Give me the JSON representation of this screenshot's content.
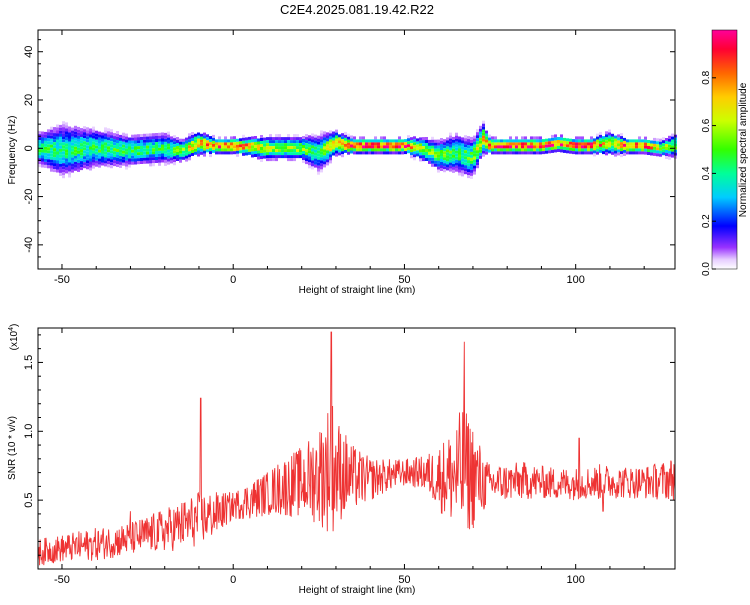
{
  "title": "C2E4.2025.081.19.42.R22",
  "colors": {
    "snr_line": "#ee3333"
  },
  "chart_data": [
    {
      "type": "heatmap",
      "title": "C2E4.2025.081.19.42.R22",
      "xlabel": "Height of straight line (km)",
      "ylabel": "Frequency (Hz)",
      "xlim": [
        -57,
        129
      ],
      "ylim": [
        -50,
        49
      ],
      "xticks": [
        -50,
        0,
        50,
        100
      ],
      "yticks": [
        -40,
        -20,
        0,
        20,
        40
      ],
      "xtick_labels": [
        "-50",
        "0",
        "50",
        "100"
      ],
      "ytick_labels": [
        "-40",
        "-20",
        "0",
        "20",
        "40"
      ],
      "colorbar": {
        "label": "Normalized spectral amplitude",
        "range": [
          0,
          1
        ],
        "ticks": [
          0.0,
          0.2,
          0.4,
          0.6,
          0.8
        ],
        "tick_labels": [
          "0.0",
          "0.2",
          "0.4",
          "0.6",
          "0.8"
        ]
      },
      "ridge": {
        "x": [
          -57,
          -50,
          -40,
          -30,
          -20,
          -15,
          -10,
          -5,
          0,
          10,
          20,
          25,
          30,
          35,
          40,
          50,
          55,
          60,
          65,
          70,
          73,
          75,
          80,
          85,
          90,
          95,
          100,
          105,
          110,
          115,
          120,
          125,
          129
        ],
        "y": [
          0,
          -1,
          0,
          -1,
          0,
          -1,
          2,
          1,
          1,
          0,
          0,
          -2,
          2,
          1,
          1,
          1,
          0,
          -3,
          -2,
          -4,
          4,
          1,
          1,
          1,
          1,
          2,
          1,
          1,
          2,
          1,
          1,
          0,
          1
        ],
        "halfwidth": [
          4,
          7,
          5,
          4,
          4,
          3,
          3,
          2,
          2,
          3,
          3,
          5,
          3,
          2,
          2,
          2,
          3,
          4,
          5,
          5,
          4,
          2,
          2,
          2,
          2,
          2,
          2,
          2,
          3,
          2,
          2,
          2,
          3
        ],
        "peak": [
          0.45,
          0.4,
          0.45,
          0.45,
          0.45,
          0.5,
          0.8,
          0.8,
          0.9,
          0.6,
          0.55,
          0.4,
          0.8,
          0.9,
          0.9,
          0.9,
          0.55,
          0.5,
          0.45,
          0.5,
          0.7,
          0.9,
          0.85,
          0.9,
          0.9,
          0.85,
          0.9,
          0.9,
          0.6,
          0.85,
          0.85,
          0.6,
          0.55
        ]
      }
    },
    {
      "type": "line",
      "xlabel": "Height of straight line (km)",
      "ylabel": "SNR (10 * v/v)",
      "y_multiplier": "(x10",
      "y_multiplier_exp": "4",
      "y_multiplier_close": ")",
      "xlim": [
        -57,
        129
      ],
      "ylim": [
        0.0,
        1.75
      ],
      "xticks": [
        -50,
        0,
        50,
        100
      ],
      "yticks": [
        0.5,
        1.0,
        1.5
      ],
      "xtick_labels": [
        "-50",
        "0",
        "50",
        "100"
      ],
      "ytick_labels": [
        "0.5",
        "1.0",
        "1.5"
      ],
      "series": [
        {
          "x": [
            -57,
            -50,
            -40,
            -30,
            -20,
            -15,
            -10,
            -5,
            0,
            5,
            10,
            15,
            20,
            25,
            27,
            29,
            30,
            35,
            40,
            45,
            50,
            55,
            58,
            62,
            65,
            67,
            68,
            70,
            73,
            75,
            80,
            85,
            90,
            95,
            100,
            105,
            108,
            110,
            115,
            120,
            125,
            129
          ],
          "y": [
            0.12,
            0.15,
            0.18,
            0.22,
            0.28,
            0.32,
            0.36,
            0.4,
            0.46,
            0.5,
            0.55,
            0.6,
            0.63,
            0.68,
            0.72,
            0.75,
            0.72,
            0.66,
            0.65,
            0.68,
            0.7,
            0.7,
            0.68,
            0.66,
            0.68,
            0.7,
            0.7,
            0.68,
            0.62,
            0.62,
            0.63,
            0.64,
            0.63,
            0.62,
            0.62,
            0.63,
            0.63,
            0.63,
            0.63,
            0.63,
            0.64,
            0.66
          ],
          "noise": [
            0.1,
            0.1,
            0.12,
            0.12,
            0.16,
            0.18,
            0.2,
            0.16,
            0.1,
            0.14,
            0.16,
            0.22,
            0.26,
            0.36,
            0.45,
            0.5,
            0.4,
            0.24,
            0.16,
            0.12,
            0.1,
            0.12,
            0.18,
            0.3,
            0.4,
            0.5,
            0.45,
            0.4,
            0.22,
            0.14,
            0.14,
            0.14,
            0.12,
            0.12,
            0.12,
            0.12,
            0.14,
            0.12,
            0.12,
            0.12,
            0.14,
            0.16
          ],
          "spikes": [
            {
              "x": -9.5,
              "y": 1.24
            },
            {
              "x": 28.6,
              "y": 1.72
            },
            {
              "x": 67.5,
              "y": 1.65
            },
            {
              "x": -30,
              "y": 0.42
            },
            {
              "x": 101,
              "y": 0.95
            },
            {
              "x": 108,
              "y": 0.42
            }
          ]
        }
      ]
    }
  ]
}
